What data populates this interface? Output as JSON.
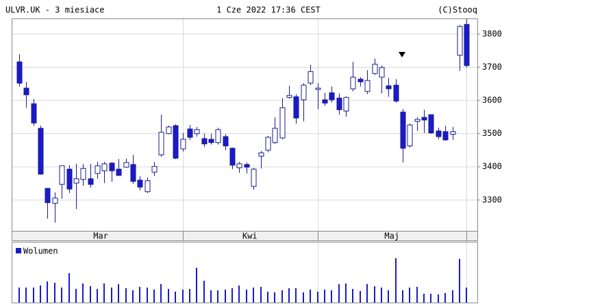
{
  "chart_data": {
    "type": "candlestick",
    "title": "ULVR.UK - 3 miesiace",
    "subtitle": "1 Cze 2022 17:36 CEST",
    "source": "(C)Stooq",
    "categories": [
      null,
      null,
      null,
      null,
      null,
      null,
      null,
      null,
      null,
      null,
      null,
      "Mar",
      null,
      null,
      null,
      null,
      null,
      null,
      null,
      null,
      null,
      null,
      null,
      null,
      null,
      null,
      null,
      null,
      null,
      null,
      null,
      null,
      "Kwi",
      null,
      null,
      null,
      null,
      null,
      null,
      null,
      null,
      null,
      null,
      null,
      null,
      null,
      null,
      null,
      null,
      null,
      null,
      null,
      "Maj",
      null,
      null,
      null,
      null,
      null,
      null,
      null,
      null,
      null,
      null,
      null
    ],
    "open": [
      3716,
      3637,
      3590,
      3516,
      3335,
      3290,
      3347,
      3393,
      3351,
      3362,
      3364,
      3380,
      3388,
      3411,
      3393,
      3399,
      3407,
      3360,
      3325,
      3384,
      3436,
      3500,
      3524,
      3454,
      3514,
      3500,
      3485,
      3483,
      3473,
      3491,
      3456,
      3397,
      3407,
      3341,
      3432,
      3450,
      3473,
      3487,
      3609,
      3611,
      3602,
      3652,
      3633,
      3602,
      3623,
      3607,
      3568,
      3635,
      3664,
      3627,
      3681,
      3670,
      3644,
      3646,
      3565,
      3463,
      3537,
      3549,
      3557,
      3508,
      3506,
      3498,
      3736,
      3829
    ],
    "high": [
      3739,
      3656,
      3605,
      3524,
      3335,
      3323,
      3403,
      3405,
      3409,
      3409,
      3409,
      3415,
      3415,
      3415,
      3423,
      3425,
      3436,
      3372,
      3368,
      3415,
      3557,
      3524,
      3528,
      3502,
      3526,
      3520,
      3500,
      3500,
      3518,
      3498,
      3458,
      3415,
      3413,
      3397,
      3448,
      3493,
      3549,
      3607,
      3644,
      3619,
      3652,
      3707,
      3652,
      3623,
      3642,
      3621,
      3613,
      3716,
      3670,
      3691,
      3726,
      3705,
      3668,
      3664,
      3574,
      3530,
      3549,
      3572,
      3557,
      3518,
      3524,
      3520,
      3827,
      3845
    ],
    "low": [
      3642,
      3578,
      3524,
      3376,
      3244,
      3232,
      3304,
      3321,
      3273,
      3343,
      3337,
      3364,
      3351,
      3355,
      3374,
      3397,
      3349,
      3329,
      3321,
      3372,
      3430,
      3498,
      3423,
      3446,
      3481,
      3491,
      3460,
      3467,
      3467,
      3450,
      3393,
      3382,
      3380,
      3331,
      3395,
      3444,
      3469,
      3483,
      3605,
      3530,
      3537,
      3646,
      3574,
      3584,
      3594,
      3557,
      3551,
      3627,
      3642,
      3619,
      3677,
      3621,
      3611,
      3594,
      3413,
      3458,
      3508,
      3502,
      3500,
      3483,
      3479,
      3481,
      3689,
      3699
    ],
    "close": [
      3652,
      3617,
      3532,
      3378,
      3292,
      3306,
      3403,
      3333,
      3364,
      3395,
      3347,
      3403,
      3409,
      3388,
      3374,
      3413,
      3356,
      3339,
      3358,
      3401,
      3504,
      3520,
      3426,
      3483,
      3489,
      3512,
      3469,
      3473,
      3512,
      3463,
      3405,
      3409,
      3399,
      3393,
      3442,
      3489,
      3516,
      3578,
      3615,
      3547,
      3646,
      3687,
      3637,
      3592,
      3602,
      3572,
      3609,
      3670,
      3656,
      3660,
      3709,
      3699,
      3635,
      3598,
      3456,
      3526,
      3543,
      3541,
      3502,
      3491,
      3481,
      3506,
      3823,
      3705
    ],
    "up_color": "#ffffff",
    "down_color": "#1a1acc",
    "edge_color": "#1a1a8c",
    "ylim": [
      3205,
      3847
    ],
    "yticks": [
      3300,
      3400,
      3500,
      3600,
      3700,
      3800
    ],
    "grid": true,
    "volume": {
      "name": "Wolumen",
      "color": "#1a1acc",
      "values": [
        22,
        22,
        22,
        25,
        31,
        29,
        22,
        43,
        20,
        28,
        24,
        20,
        28,
        22,
        27,
        21,
        18,
        23,
        22,
        19,
        27,
        20,
        16,
        19,
        20,
        51,
        32,
        18,
        18,
        19,
        21,
        25,
        19,
        22,
        23,
        16,
        15,
        18,
        21,
        21,
        15,
        19,
        16,
        19,
        18,
        27,
        28,
        20,
        17,
        27,
        24,
        22,
        18,
        65,
        18,
        22,
        23,
        13,
        13,
        12,
        14,
        18,
        64,
        22
      ],
      "ylim": [
        0,
        88
      ]
    }
  }
}
